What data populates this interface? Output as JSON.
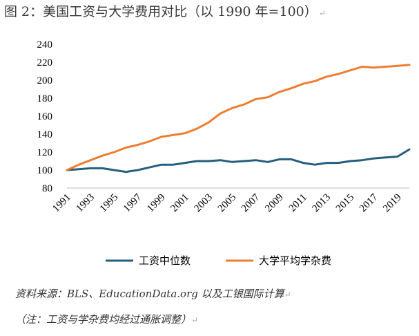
{
  "title": "图 2：美国工资与大学费用对比（以 1990 年=100）",
  "paragraph_mark": "↵",
  "source": "资料来源：BLS、EducationData.org 以及工银国际计算",
  "note": "（注：工资与学杂费均经过通胀调整）",
  "chart_data": {
    "type": "line",
    "x": [
      1991,
      1992,
      1993,
      1994,
      1995,
      1996,
      1997,
      1998,
      1999,
      2000,
      2001,
      2002,
      2003,
      2004,
      2005,
      2006,
      2007,
      2008,
      2009,
      2010,
      2011,
      2012,
      2013,
      2014,
      2015,
      2016,
      2017,
      2018,
      2019,
      2020
    ],
    "x_tick_labels": [
      "1991",
      "1993",
      "1995",
      "1997",
      "1999",
      "2001",
      "2003",
      "2005",
      "2007",
      "2009",
      "2011",
      "2013",
      "2015",
      "2017",
      "2019"
    ],
    "y_tick_labels": [
      "80",
      "100",
      "120",
      "140",
      "160",
      "180",
      "200",
      "220",
      "240"
    ],
    "ylim": [
      80,
      240
    ],
    "grid": false,
    "legend_position": "bottom",
    "series": [
      {
        "name": "工资中位数",
        "color": "#255e7e",
        "values": [
          100,
          101,
          102,
          102,
          100,
          98,
          100,
          103,
          106,
          106,
          108,
          110,
          110,
          111,
          109,
          110,
          111,
          109,
          112,
          112,
          108,
          106,
          108,
          108,
          110,
          111,
          113,
          114,
          115,
          123
        ]
      },
      {
        "name": "大学平均学杂费",
        "color": "#ed7d31",
        "values": [
          100,
          106,
          111,
          116,
          120,
          125,
          128,
          132,
          137,
          139,
          141,
          146,
          153,
          163,
          169,
          173,
          179,
          181,
          187,
          191,
          196,
          199,
          204,
          207,
          211,
          215,
          214,
          215,
          216,
          217
        ]
      }
    ]
  }
}
